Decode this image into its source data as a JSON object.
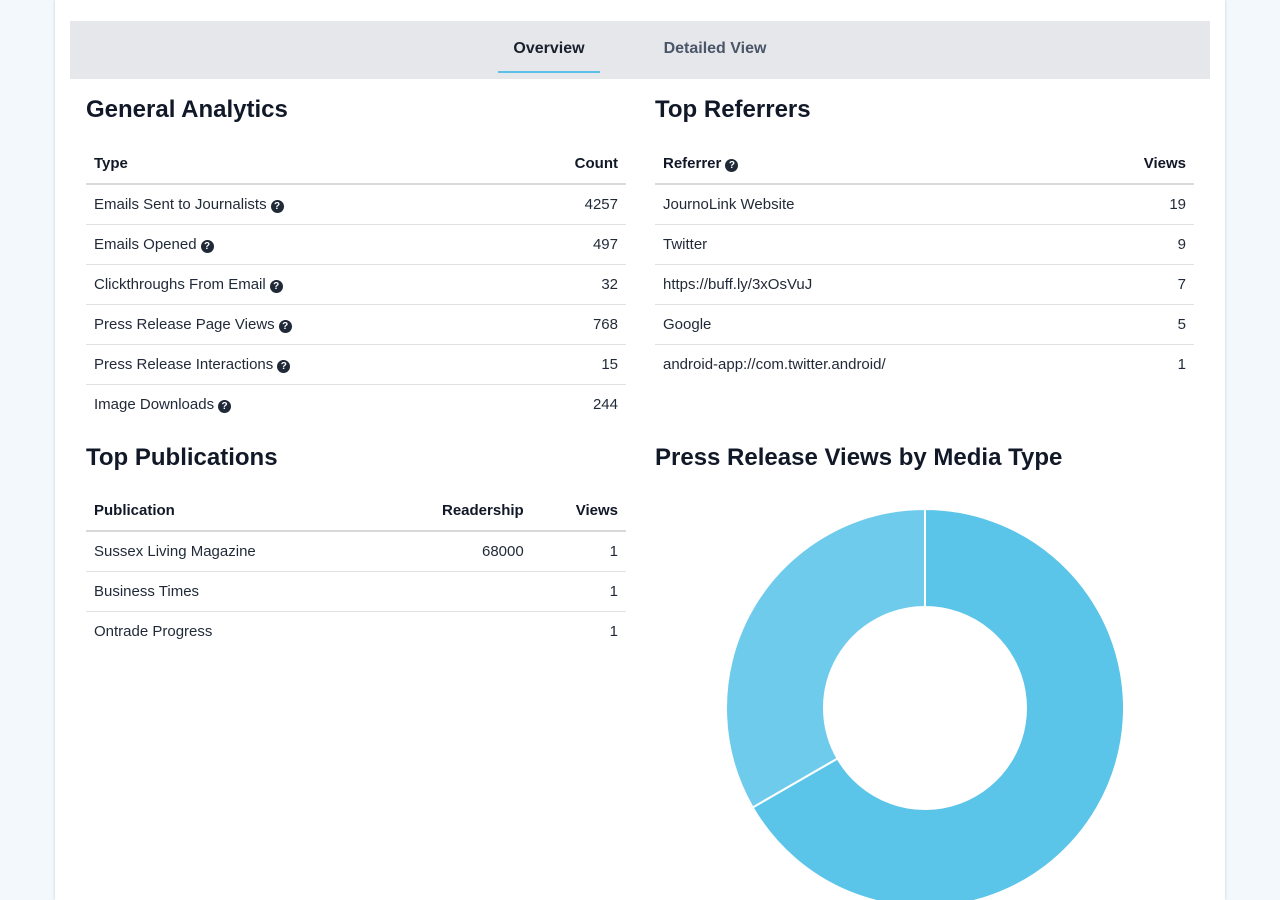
{
  "tabs": [
    {
      "label": "Overview",
      "active": true
    },
    {
      "label": "Detailed View",
      "active": false
    }
  ],
  "general_analytics": {
    "title": "General Analytics",
    "columns": [
      "Type",
      "Count"
    ],
    "rows": [
      {
        "type": "Emails Sent to Journalists",
        "count": "4257"
      },
      {
        "type": "Emails Opened",
        "count": "497"
      },
      {
        "type": "Clickthroughs From Email",
        "count": "32"
      },
      {
        "type": "Press Release Page Views",
        "count": "768"
      },
      {
        "type": "Press Release Interactions",
        "count": "15"
      },
      {
        "type": "Image Downloads",
        "count": "244"
      }
    ]
  },
  "top_referrers": {
    "title": "Top Referrers",
    "columns": [
      "Referrer",
      "Views"
    ],
    "rows": [
      {
        "referrer": "JournoLink Website",
        "views": "19"
      },
      {
        "referrer": "Twitter",
        "views": "9"
      },
      {
        "referrer": "https://buff.ly/3xOsVuJ",
        "views": "7"
      },
      {
        "referrer": "Google",
        "views": "5"
      },
      {
        "referrer": "android-app://com.twitter.android/",
        "views": "1"
      }
    ]
  },
  "top_publications": {
    "title": "Top Publications",
    "columns": [
      "Publication",
      "Readership",
      "Views"
    ],
    "rows": [
      {
        "publication": "Sussex Living Magazine",
        "readership": "68000",
        "views": "1"
      },
      {
        "publication": "Business Times",
        "readership": "",
        "views": "1"
      },
      {
        "publication": "Ontrade Progress",
        "readership": "",
        "views": "1"
      }
    ]
  },
  "media_type_chart": {
    "title": "Press Release Views by Media Type"
  },
  "chart_data": {
    "type": "pie",
    "title": "Press Release Views by Media Type",
    "donut": true,
    "values": [
      0.6667,
      0.3333
    ],
    "colors": [
      "#5bc4e9",
      "#6ecbec"
    ]
  },
  "icons": {
    "help": "question-circle-icon"
  }
}
